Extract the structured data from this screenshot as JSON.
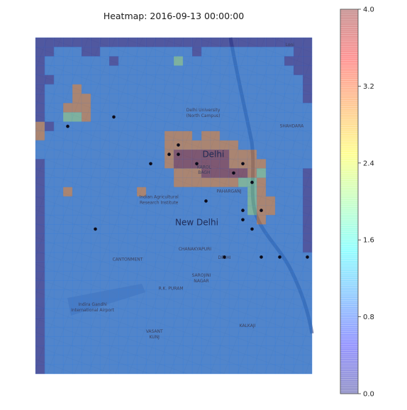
{
  "chart_data": {
    "type": "heatmap",
    "title": "Heatmap: 2016-09-13 00:00:00",
    "value_range": [
      0,
      4
    ],
    "colorbar_ticks": [
      "0.0",
      "0.8",
      "1.6",
      "2.4",
      "3.2",
      "4.0"
    ],
    "colorbar_tick_values": [
      0,
      0.8,
      1.6,
      2.4,
      3.2,
      4.0
    ],
    "colormap": "jet",
    "alpha": 0.35,
    "grid": {
      "cols": 30,
      "rows": 36
    },
    "points": [
      [
        3,
        9
      ],
      [
        8,
        8
      ],
      [
        12,
        13
      ],
      [
        17,
        13
      ],
      [
        14,
        12
      ],
      [
        15,
        11
      ],
      [
        15,
        12
      ],
      [
        18,
        17
      ],
      [
        22,
        13
      ],
      [
        21,
        14
      ],
      [
        23,
        15
      ],
      [
        22,
        18
      ],
      [
        24,
        18
      ],
      [
        22,
        19
      ],
      [
        23,
        20
      ],
      [
        20,
        23
      ],
      [
        6,
        20
      ],
      [
        24,
        23
      ],
      [
        26,
        23
      ],
      [
        29,
        23
      ]
    ],
    "map_labels": [
      {
        "text": "Delhi",
        "col": 19.3,
        "row": 12.8,
        "big": true
      },
      {
        "text": "New Delhi",
        "col": 17.5,
        "row": 20.1,
        "big": true
      },
      {
        "text": "Delhi University",
        "col": 18.2,
        "row": 7.9
      },
      {
        "text": "(North Campus)",
        "col": 18.2,
        "row": 8.5
      },
      {
        "text": "Indian Agricultural",
        "col": 13.4,
        "row": 17.2
      },
      {
        "text": "Research Institute",
        "col": 13.4,
        "row": 17.8
      },
      {
        "text": "Indira Gandhi",
        "col": 6.2,
        "row": 28.7
      },
      {
        "text": "International Airport",
        "col": 6.2,
        "row": 29.3
      },
      {
        "text": "KAROL",
        "col": 18.3,
        "row": 14.0
      },
      {
        "text": "BAGH",
        "col": 18.3,
        "row": 14.6
      },
      {
        "text": "PAHARGANJ",
        "col": 21.0,
        "row": 16.6
      },
      {
        "text": "CHANAKYAPURI",
        "col": 17.3,
        "row": 22.8
      },
      {
        "text": "DELHI",
        "col": 20.5,
        "row": 23.7
      },
      {
        "text": "CANTONMENT",
        "col": 10.0,
        "row": 23.9
      },
      {
        "text": "SAROJINI",
        "col": 18.0,
        "row": 25.6
      },
      {
        "text": "NAGAR",
        "col": 18.0,
        "row": 26.2
      },
      {
        "text": "R.K. PURAM",
        "col": 14.7,
        "row": 27.0
      },
      {
        "text": "VASANT",
        "col": 12.9,
        "row": 31.6
      },
      {
        "text": "KUNJ",
        "col": 12.9,
        "row": 32.2
      },
      {
        "text": "KALKAJI",
        "col": 23.0,
        "row": 31.0
      },
      {
        "text": "SHAHDARA",
        "col": 27.8,
        "row": 9.6
      },
      {
        "text": "Loni",
        "col": 27.6,
        "row": 0.9
      }
    ],
    "values": [
      [
        0,
        0,
        0,
        0,
        0,
        0,
        0,
        0,
        0,
        0,
        0,
        0,
        0,
        0,
        0,
        0,
        0,
        0,
        0,
        0,
        0,
        0,
        0,
        0,
        0,
        0,
        0,
        0,
        0,
        0
      ],
      [
        0,
        0,
        1,
        1,
        1,
        0,
        0,
        1,
        1,
        1,
        1,
        1,
        1,
        1,
        1,
        1,
        1,
        0,
        1,
        1,
        1,
        1,
        1,
        1,
        1,
        1,
        1,
        1,
        0,
        0
      ],
      [
        0,
        1,
        1,
        1,
        1,
        1,
        1,
        1,
        0,
        1,
        1,
        1,
        1,
        1,
        1,
        2,
        1,
        1,
        1,
        1,
        1,
        1,
        1,
        1,
        1,
        1,
        1,
        0,
        0,
        0
      ],
      [
        0,
        1,
        1,
        1,
        1,
        1,
        1,
        1,
        1,
        1,
        1,
        1,
        1,
        1,
        1,
        1,
        1,
        1,
        1,
        1,
        1,
        1,
        1,
        1,
        1,
        1,
        1,
        1,
        0,
        0
      ],
      [
        0,
        0,
        1,
        1,
        1,
        1,
        1,
        1,
        1,
        1,
        1,
        1,
        1,
        1,
        1,
        1,
        1,
        1,
        1,
        1,
        1,
        1,
        1,
        1,
        1,
        1,
        1,
        1,
        1,
        0
      ],
      [
        0,
        1,
        1,
        1,
        3,
        1,
        1,
        1,
        1,
        1,
        1,
        1,
        1,
        1,
        1,
        1,
        1,
        1,
        1,
        1,
        1,
        1,
        1,
        1,
        1,
        1,
        1,
        1,
        1,
        0
      ],
      [
        0,
        1,
        1,
        1,
        3,
        3,
        1,
        1,
        1,
        1,
        1,
        1,
        1,
        1,
        1,
        1,
        1,
        1,
        1,
        1,
        1,
        1,
        1,
        1,
        1,
        1,
        1,
        1,
        1,
        0
      ],
      [
        0,
        1,
        1,
        3,
        3,
        3,
        1,
        1,
        1,
        1,
        1,
        1,
        1,
        1,
        1,
        1,
        1,
        1,
        1,
        1,
        1,
        1,
        1,
        1,
        1,
        1,
        1,
        1,
        1,
        1
      ],
      [
        0,
        1,
        1,
        2,
        2,
        3,
        1,
        1,
        1,
        1,
        1,
        1,
        1,
        1,
        1,
        1,
        1,
        1,
        1,
        1,
        1,
        1,
        1,
        1,
        1,
        1,
        1,
        1,
        1,
        1
      ],
      [
        3,
        0,
        1,
        1,
        1,
        1,
        1,
        1,
        1,
        1,
        1,
        1,
        1,
        1,
        1,
        1,
        1,
        1,
        1,
        1,
        1,
        1,
        1,
        1,
        1,
        1,
        1,
        1,
        1,
        1
      ],
      [
        3,
        1,
        1,
        1,
        1,
        1,
        1,
        1,
        1,
        1,
        1,
        1,
        1,
        1,
        3,
        3,
        3,
        1,
        3,
        3,
        1,
        1,
        1,
        1,
        1,
        1,
        1,
        1,
        1,
        1
      ],
      [
        1,
        1,
        1,
        1,
        1,
        1,
        1,
        1,
        1,
        1,
        1,
        1,
        1,
        1,
        3,
        3,
        3,
        3,
        3,
        3,
        3,
        3,
        1,
        1,
        1,
        1,
        1,
        1,
        1,
        1
      ],
      [
        1,
        1,
        1,
        1,
        1,
        1,
        1,
        1,
        1,
        1,
        1,
        1,
        1,
        1,
        3,
        4,
        4,
        4,
        4,
        4,
        4,
        3,
        3,
        3,
        1,
        1,
        1,
        1,
        1,
        1
      ],
      [
        0,
        1,
        1,
        1,
        1,
        1,
        1,
        1,
        1,
        1,
        1,
        1,
        1,
        1,
        3,
        4,
        4,
        4,
        4,
        4,
        4,
        3,
        3,
        3,
        3,
        1,
        1,
        1,
        1,
        1
      ],
      [
        0,
        1,
        1,
        1,
        1,
        1,
        1,
        1,
        1,
        1,
        1,
        1,
        1,
        1,
        1,
        3,
        3,
        3,
        4,
        4,
        4,
        4,
        4,
        3,
        2,
        1,
        1,
        1,
        1,
        0
      ],
      [
        0,
        1,
        1,
        1,
        1,
        1,
        1,
        1,
        1,
        1,
        1,
        1,
        1,
        1,
        1,
        3,
        3,
        3,
        3,
        3,
        3,
        3,
        2,
        2,
        3,
        1,
        1,
        1,
        1,
        0
      ],
      [
        0,
        1,
        1,
        3,
        1,
        1,
        1,
        1,
        1,
        1,
        1,
        3,
        1,
        1,
        1,
        1,
        1,
        1,
        1,
        1,
        1,
        1,
        1,
        2,
        3,
        1,
        1,
        1,
        1,
        0
      ],
      [
        0,
        1,
        1,
        1,
        1,
        1,
        1,
        1,
        1,
        1,
        1,
        1,
        1,
        1,
        1,
        1,
        1,
        1,
        1,
        1,
        1,
        1,
        1,
        2,
        3,
        3,
        1,
        1,
        1,
        0
      ],
      [
        0,
        1,
        1,
        1,
        1,
        1,
        1,
        1,
        1,
        1,
        1,
        1,
        1,
        1,
        1,
        1,
        1,
        1,
        1,
        1,
        1,
        1,
        1,
        2,
        3,
        3,
        1,
        1,
        1,
        0
      ],
      [
        0,
        1,
        1,
        1,
        1,
        1,
        1,
        1,
        1,
        1,
        1,
        1,
        1,
        1,
        1,
        1,
        1,
        1,
        1,
        1,
        1,
        1,
        1,
        1,
        3,
        1,
        1,
        1,
        1,
        0
      ],
      [
        0,
        1,
        1,
        1,
        1,
        1,
        1,
        1,
        1,
        1,
        1,
        1,
        1,
        1,
        1,
        1,
        1,
        1,
        1,
        1,
        1,
        1,
        1,
        1,
        1,
        1,
        1,
        1,
        1,
        0
      ],
      [
        0,
        1,
        1,
        1,
        1,
        1,
        1,
        1,
        1,
        1,
        1,
        1,
        1,
        1,
        1,
        1,
        1,
        1,
        1,
        1,
        1,
        1,
        1,
        1,
        1,
        1,
        1,
        1,
        1,
        0
      ],
      [
        0,
        1,
        1,
        1,
        1,
        1,
        1,
        1,
        1,
        1,
        1,
        1,
        1,
        1,
        1,
        1,
        1,
        1,
        1,
        1,
        1,
        1,
        1,
        1,
        1,
        1,
        1,
        1,
        1,
        0
      ],
      [
        0,
        1,
        1,
        1,
        1,
        1,
        1,
        1,
        1,
        1,
        1,
        1,
        1,
        1,
        1,
        1,
        1,
        1,
        1,
        1,
        1,
        1,
        1,
        1,
        1,
        1,
        1,
        1,
        1,
        1
      ],
      [
        0,
        1,
        1,
        1,
        1,
        1,
        1,
        1,
        1,
        1,
        1,
        1,
        1,
        1,
        1,
        1,
        1,
        1,
        1,
        1,
        1,
        1,
        1,
        1,
        1,
        1,
        1,
        1,
        1,
        1
      ],
      [
        0,
        1,
        1,
        1,
        1,
        1,
        1,
        1,
        1,
        1,
        1,
        1,
        1,
        1,
        1,
        1,
        1,
        1,
        1,
        1,
        1,
        1,
        1,
        1,
        1,
        1,
        1,
        1,
        1,
        1
      ],
      [
        0,
        1,
        1,
        1,
        1,
        1,
        1,
        1,
        1,
        1,
        1,
        1,
        1,
        1,
        1,
        1,
        1,
        1,
        1,
        1,
        1,
        1,
        1,
        1,
        1,
        1,
        1,
        1,
        1,
        1
      ],
      [
        0,
        1,
        1,
        1,
        1,
        1,
        1,
        1,
        1,
        1,
        1,
        1,
        1,
        1,
        1,
        1,
        1,
        1,
        1,
        1,
        1,
        1,
        1,
        1,
        1,
        1,
        1,
        1,
        1,
        1
      ],
      [
        0,
        1,
        1,
        1,
        1,
        1,
        1,
        1,
        1,
        1,
        1,
        1,
        1,
        1,
        1,
        1,
        1,
        1,
        1,
        1,
        1,
        1,
        1,
        1,
        1,
        1,
        1,
        1,
        1,
        1
      ],
      [
        0,
        1,
        1,
        1,
        1,
        1,
        1,
        1,
        1,
        1,
        1,
        1,
        1,
        1,
        1,
        1,
        1,
        1,
        1,
        1,
        1,
        1,
        1,
        1,
        1,
        1,
        1,
        1,
        1,
        1
      ],
      [
        0,
        1,
        1,
        1,
        1,
        1,
        1,
        1,
        1,
        1,
        1,
        1,
        1,
        1,
        1,
        1,
        1,
        1,
        1,
        1,
        1,
        1,
        1,
        1,
        1,
        1,
        1,
        1,
        1,
        1
      ],
      [
        0,
        1,
        1,
        1,
        1,
        1,
        1,
        1,
        1,
        1,
        1,
        1,
        1,
        1,
        1,
        1,
        1,
        1,
        1,
        1,
        1,
        1,
        1,
        1,
        1,
        1,
        1,
        1,
        1,
        1
      ],
      [
        0,
        1,
        1,
        1,
        1,
        1,
        1,
        1,
        1,
        1,
        1,
        1,
        1,
        1,
        1,
        1,
        1,
        1,
        1,
        1,
        1,
        1,
        1,
        1,
        1,
        1,
        1,
        1,
        1,
        1
      ],
      [
        0,
        1,
        1,
        1,
        1,
        1,
        1,
        1,
        1,
        1,
        1,
        1,
        1,
        1,
        1,
        1,
        1,
        1,
        1,
        1,
        1,
        1,
        1,
        1,
        1,
        1,
        1,
        1,
        1,
        1
      ],
      [
        0,
        1,
        1,
        1,
        1,
        1,
        1,
        1,
        1,
        1,
        1,
        1,
        1,
        1,
        1,
        1,
        1,
        1,
        1,
        1,
        1,
        1,
        1,
        1,
        1,
        1,
        1,
        1,
        1,
        1
      ],
      [
        0,
        1,
        1,
        1,
        1,
        1,
        1,
        1,
        1,
        1,
        1,
        1,
        1,
        1,
        1,
        1,
        1,
        1,
        1,
        1,
        1,
        1,
        1,
        1,
        1,
        1,
        1,
        1,
        1,
        1
      ]
    ]
  }
}
